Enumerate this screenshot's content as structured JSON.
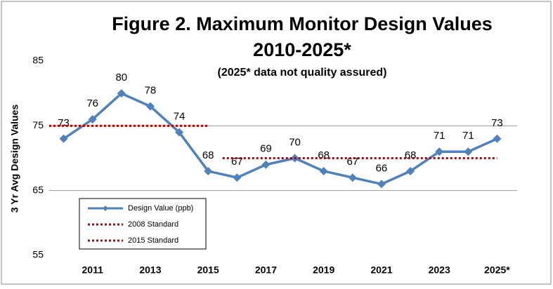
{
  "chart_data": {
    "type": "line",
    "title": "Figure 2. Maximum Monitor Design Values",
    "title_line2": "2010-2025*",
    "subtitle": "(2025* data not quality assured)",
    "y_label": "3 Yr Avg Design Values",
    "categories": [
      null,
      "2011",
      null,
      "2013",
      null,
      "2015",
      null,
      "2017",
      null,
      "2019",
      null,
      "2021",
      null,
      "2023",
      null,
      "2025*"
    ],
    "series": [
      {
        "name": "Design Value (ppb)",
        "color": "#4f81bd",
        "style": "solid",
        "markers": true,
        "values": [
          73,
          76,
          80,
          78,
          74,
          68,
          67,
          69,
          70,
          68,
          67,
          66,
          68,
          71,
          71,
          73
        ]
      },
      {
        "name": "2008 Standard",
        "color": "#c00000",
        "style": "dotted",
        "markers": false,
        "values": [
          75,
          75,
          75,
          75,
          75,
          75,
          null,
          null,
          null,
          null,
          null,
          null,
          null,
          null,
          null,
          null
        ]
      },
      {
        "name": "2015 Standard",
        "color": "#c00000",
        "style": "dotted",
        "markers": false,
        "values": [
          null,
          null,
          null,
          null,
          null,
          null,
          70,
          70,
          70,
          70,
          70,
          70,
          70,
          70,
          70,
          70
        ]
      }
    ],
    "ylim": [
      55,
      85
    ],
    "yticks": [
      55,
      65,
      75,
      85
    ],
    "grid": true
  }
}
